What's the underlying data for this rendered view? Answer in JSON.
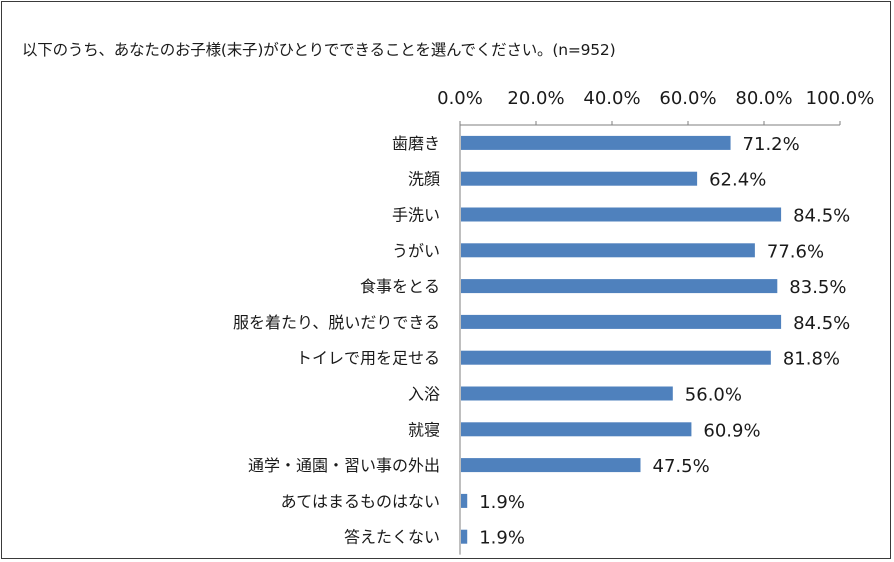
{
  "title": "以下のうち、あなたのお子様(末子)がひとりでできることを選んでください。(n=952)",
  "colors": {
    "bar": "#4f81bd",
    "axis": "#7f7f7f",
    "text": "#1a1a1a"
  },
  "chart_data": {
    "type": "bar",
    "orientation": "horizontal",
    "title": "以下のうち、あなたのお子様(末子)がひとりでできることを選んでください。(n=952)",
    "xlim": [
      0,
      100
    ],
    "x_ticks": [
      "0.0%",
      "20.0%",
      "40.0%",
      "60.0%",
      "80.0%",
      "100.0%"
    ],
    "x_axis_position": "top",
    "grid": false,
    "legend": "none",
    "categories": [
      "歯磨き",
      "洗顔",
      "手洗い",
      "うがい",
      "食事をとる",
      "服を着たり、脱いだりできる",
      "トイレで用を足せる",
      "入浴",
      "就寝",
      "通学・通園・習い事の外出",
      "あてはまるものはない",
      "答えたくない"
    ],
    "values": [
      71.2,
      62.4,
      84.5,
      77.6,
      83.5,
      84.5,
      81.8,
      56.0,
      60.9,
      47.5,
      1.9,
      1.9
    ],
    "data_labels": [
      "71.2%",
      "62.4%",
      "84.5%",
      "77.6%",
      "83.5%",
      "84.5%",
      "81.8%",
      "56.0%",
      "60.9%",
      "47.5%",
      "1.9%",
      "1.9%"
    ]
  }
}
